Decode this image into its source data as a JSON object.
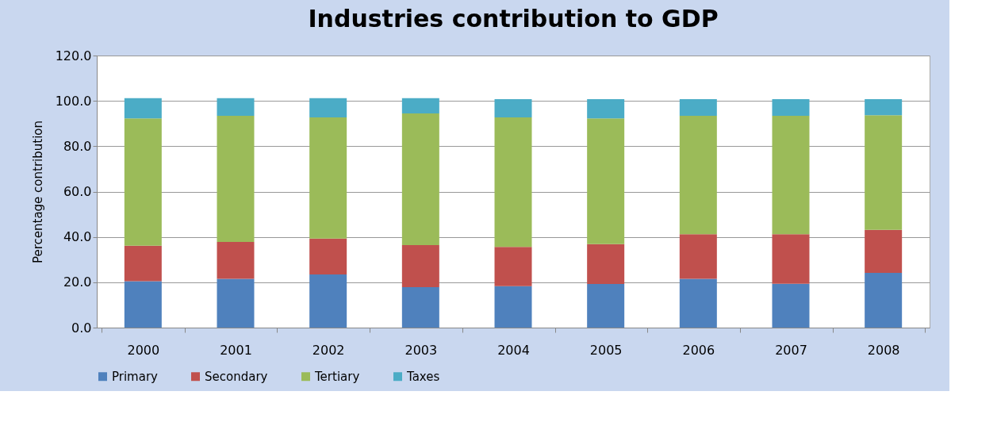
{
  "chart_data": {
    "type": "bar",
    "title": "Industries contribution to GDP",
    "ylabel": "Percentage  contribution",
    "categories": [
      "2000",
      "2001",
      "2002",
      "2003",
      "2004",
      "2005",
      "2006",
      "2007",
      "2008"
    ],
    "stacked": true,
    "series": [
      {
        "name": "Primary",
        "color": "#4f81bd",
        "values": [
          20.5,
          21.5,
          23.4,
          17.8,
          18.3,
          19.2,
          21.5,
          19.3,
          24.1
        ]
      },
      {
        "name": "Secondary",
        "color": "#c0504d",
        "values": [
          15.6,
          16.3,
          15.9,
          18.6,
          17.3,
          17.6,
          19.7,
          21.9,
          19.0
        ]
      },
      {
        "name": "Tertiary",
        "color": "#9bbb59",
        "values": [
          56.2,
          55.6,
          53.4,
          58.1,
          57.1,
          55.5,
          52.2,
          52.2,
          50.6
        ]
      },
      {
        "name": "Taxes",
        "color": "#4bacc6",
        "values": [
          8.9,
          7.8,
          8.5,
          6.7,
          8.1,
          8.5,
          7.4,
          7.4,
          7.1
        ]
      }
    ],
    "ylim": [
      0,
      120
    ],
    "yticks": [
      {
        "value": 0,
        "label": "0.0"
      },
      {
        "value": 20,
        "label": "20.0"
      },
      {
        "value": 40,
        "label": "40.0"
      },
      {
        "value": 60,
        "label": "60.0"
      },
      {
        "value": 80,
        "label": "80.0"
      },
      {
        "value": 100,
        "label": "100.0"
      },
      {
        "value": 120,
        "label": "120.0"
      }
    ],
    "grid": "y",
    "legend": "bottom"
  }
}
